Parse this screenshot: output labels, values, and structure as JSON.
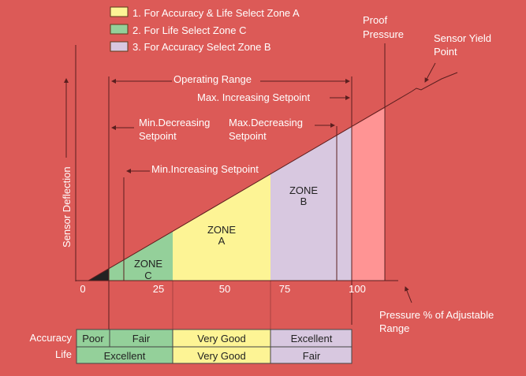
{
  "legend": [
    {
      "label": "1. For Accuracy & Life Select Zone A",
      "color": "#fdf495"
    },
    {
      "label": "2. For Life Select Zone C",
      "color": "#94d09a"
    },
    {
      "label": "3. For Accuracy Select Zone B",
      "color": "#d8c8e0"
    }
  ],
  "labels": {
    "proof_pressure": [
      "Proof",
      "Pressure"
    ],
    "sensor_yield_point": [
      "Sensor Yield",
      "Point"
    ],
    "operating_range": "Operating Range",
    "max_increasing_setpoint": "Max. Increasing Setpoint",
    "min_decreasing_setpoint": [
      "Min.Decreasing",
      "Setpoint"
    ],
    "max_decreasing_setpoint": [
      "Max.Decreasing",
      "Setpoint"
    ],
    "min_increasing_setpoint": "Min.Increasing Setpoint",
    "y_axis": "Sensor Deflection",
    "x_axis": [
      "Pressure % of Adjustable",
      "Range"
    ],
    "zone_a": [
      "ZONE",
      "A"
    ],
    "zone_b": [
      "ZONE",
      "B"
    ],
    "zone_c": [
      "ZONE",
      "C"
    ]
  },
  "x_ticks": [
    "0",
    "25",
    "50",
    "75",
    "100"
  ],
  "colors": {
    "background": "#dc5a57",
    "zone_a": "#fdf495",
    "zone_b": "#d8c8e0",
    "zone_c": "#94d09a",
    "overrange": "#ff9494"
  },
  "table": {
    "accuracy_label": "Accuracy",
    "life_label": "Life",
    "accuracy": [
      "Poor",
      "Fair",
      "Very Good",
      "Excellent"
    ],
    "life": [
      "Excellent",
      "Very Good",
      "Fair"
    ]
  }
}
